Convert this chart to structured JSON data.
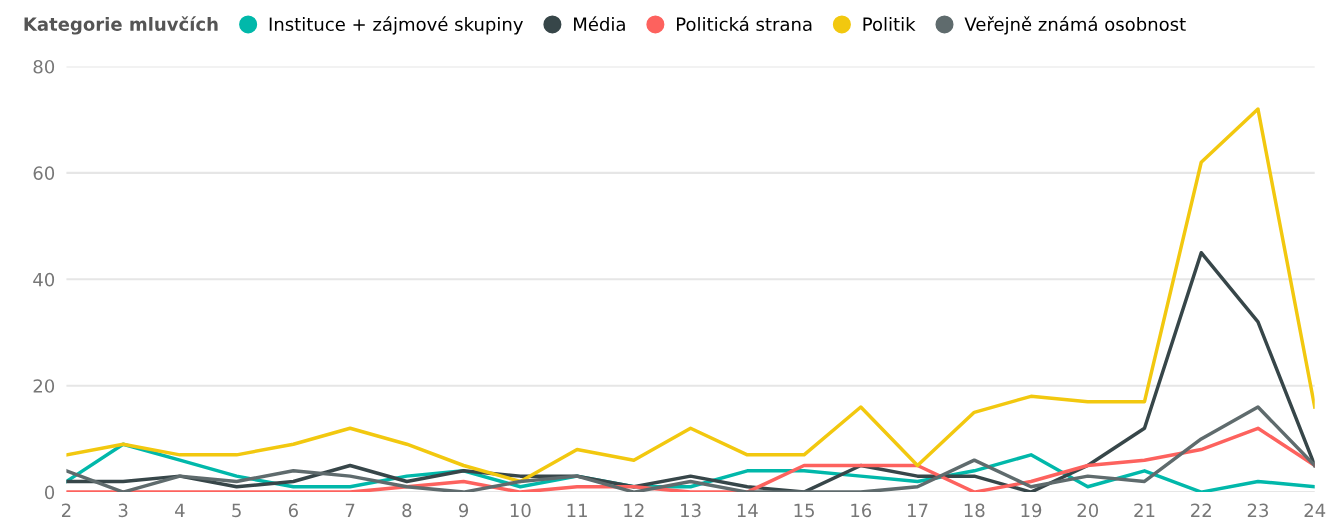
{
  "chart_data": {
    "type": "line",
    "legend_title": "Kategorie mluvčích",
    "legend": "top left",
    "grid": "y",
    "marker": "none",
    "line_style": "solid",
    "x": [
      2,
      3,
      4,
      5,
      6,
      7,
      8,
      9,
      10,
      11,
      12,
      13,
      14,
      15,
      16,
      17,
      18,
      19,
      20,
      21,
      22,
      23,
      24
    ],
    "xlim": [
      2,
      24
    ],
    "xticks": [
      2,
      3,
      4,
      5,
      6,
      7,
      8,
      9,
      10,
      11,
      12,
      13,
      14,
      15,
      16,
      17,
      18,
      19,
      20,
      21,
      22,
      23,
      24
    ],
    "ylim": [
      0,
      80
    ],
    "yticks": [
      0,
      20,
      40,
      60,
      80
    ],
    "series": [
      {
        "name": "Instituce + zájmové skupiny",
        "color": "#01b8aa",
        "values": [
          2,
          9,
          6,
          3,
          1,
          1,
          3,
          4,
          1,
          3,
          1,
          1,
          4,
          4,
          3,
          2,
          4,
          7,
          1,
          4,
          0,
          2,
          1
        ]
      },
      {
        "name": "Média",
        "color": "#374649",
        "values": [
          2,
          2,
          3,
          1,
          2,
          5,
          2,
          4,
          3,
          3,
          1,
          3,
          1,
          0,
          5,
          3,
          3,
          0,
          5,
          12,
          45,
          32,
          5
        ]
      },
      {
        "name": "Politická strana",
        "color": "#fd625e",
        "values": [
          0,
          0,
          0,
          0,
          0,
          0,
          1,
          2,
          0,
          1,
          1,
          0,
          0,
          5,
          5,
          5,
          0,
          2,
          5,
          6,
          8,
          12,
          5
        ]
      },
      {
        "name": "Politik",
        "color": "#f2c80f",
        "values": [
          7,
          9,
          7,
          7,
          9,
          12,
          9,
          5,
          2,
          8,
          6,
          12,
          7,
          7,
          16,
          5,
          15,
          18,
          17,
          17,
          62,
          72,
          16
        ]
      },
      {
        "name": "Veřejně známá osobnost",
        "color": "#5f6b6d",
        "values": [
          4,
          0,
          3,
          2,
          4,
          3,
          1,
          0,
          2,
          3,
          0,
          2,
          0,
          0,
          0,
          1,
          6,
          1,
          3,
          2,
          10,
          16,
          5
        ]
      }
    ]
  }
}
